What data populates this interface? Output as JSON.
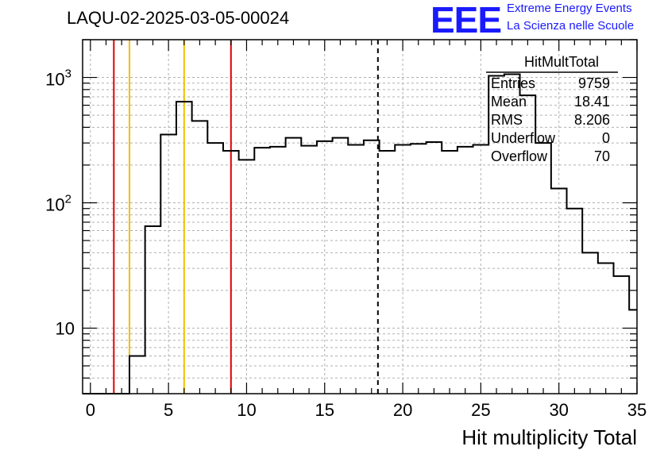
{
  "plot_title": "LAQU-02-2025-03-05-00024",
  "logo": {
    "mark": "EEE",
    "line1": "Extreme Energy Events",
    "line2": "La Scienza nelle Scuole",
    "color": "#1a1aff"
  },
  "stats_box": {
    "title": "HitMultTotal",
    "rows": [
      {
        "label": "Entries",
        "value": "9759"
      },
      {
        "label": "Mean",
        "value": "18.41"
      },
      {
        "label": "RMS",
        "value": "8.206"
      },
      {
        "label": "Underflow",
        "value": "0"
      },
      {
        "label": "Overflow",
        "value": "70"
      }
    ]
  },
  "chart_data": {
    "type": "histogram",
    "xlabel": "Hit multiplicity Total",
    "ylabel": "",
    "xlim": [
      -0.5,
      35
    ],
    "ylim": [
      3,
      2000
    ],
    "yscale": "log",
    "grid": true,
    "x_ticks": [
      "0",
      "5",
      "10",
      "15",
      "20",
      "25",
      "30",
      "35"
    ],
    "y_ticks": [
      {
        "value": 10,
        "label": "10"
      },
      {
        "value": 100,
        "base": "10",
        "exp": "2"
      },
      {
        "value": 1000,
        "base": "10",
        "exp": "3"
      }
    ],
    "bin_edges": [
      -0.5,
      0.5,
      1.5,
      2.5,
      3.5,
      4.5,
      5.5,
      6.5,
      7.5,
      8.5,
      9.5,
      10.5,
      11.5,
      12.5,
      13.5,
      14.5,
      15.5,
      16.5,
      17.5,
      18.5,
      19.5,
      20.5,
      21.5,
      22.5,
      23.5,
      24.5,
      25.5,
      26.5,
      27.5,
      28.5,
      29.5,
      30.5,
      31.5,
      32.5,
      33.5,
      34.5,
      35.5
    ],
    "counts": [
      0,
      0,
      0,
      6,
      65,
      350,
      640,
      450,
      300,
      260,
      220,
      275,
      280,
      330,
      285,
      310,
      330,
      290,
      315,
      260,
      290,
      295,
      305,
      260,
      280,
      290,
      1030,
      1060,
      720,
      300,
      130,
      90,
      40,
      33,
      26,
      14
    ],
    "line_color": "#000000",
    "vertical_lines": [
      {
        "x": 1.5,
        "color": "#e00000",
        "style": "solid"
      },
      {
        "x": 2.5,
        "color": "#f0c000",
        "style": "solid"
      },
      {
        "x": 6.0,
        "color": "#f0c000",
        "style": "solid"
      },
      {
        "x": 9.0,
        "color": "#e00000",
        "style": "solid"
      },
      {
        "x": 18.41,
        "color": "#000000",
        "style": "dashed"
      }
    ]
  }
}
